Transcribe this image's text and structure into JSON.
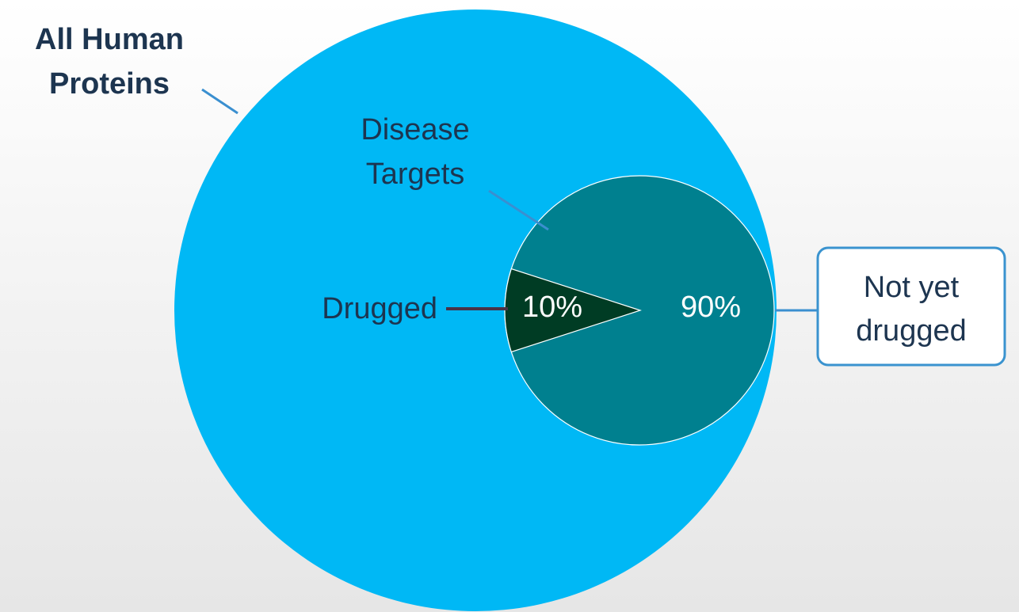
{
  "colors": {
    "background_top": "#ffffff",
    "background_bottom": "#e6e6e6",
    "outer_circle": "#00b8f5",
    "disease_circle": "#00808f",
    "drugged_slice": "#003c24",
    "callout_border": "#3a93cf",
    "leader_blue": "#3a8fd0",
    "leader_dark": "#4a3247",
    "label_text": "#1d3550",
    "inner_text": "#ffffff"
  },
  "labels": {
    "all_human_line1": "All Human",
    "all_human_line2": "Proteins",
    "disease_line1": "Disease",
    "disease_line2": "Targets",
    "drugged": "Drugged",
    "not_yet_line1": "Not yet",
    "not_yet_line2": "drugged"
  },
  "chart_data": {
    "type": "pie",
    "slices": [
      {
        "label": "Drugged",
        "value": 10,
        "display": "10%",
        "color": "#003c24"
      },
      {
        "label": "Not yet drugged",
        "value": 90,
        "display": "90%",
        "color": "#00808f"
      }
    ]
  }
}
